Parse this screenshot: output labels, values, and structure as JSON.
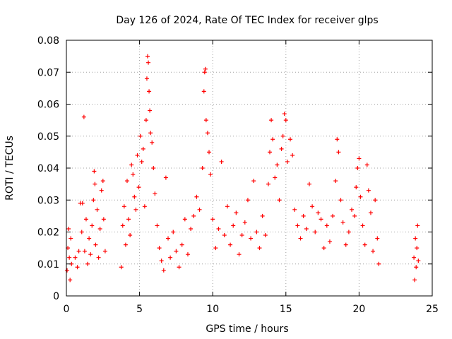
{
  "chart_data": {
    "type": "scatter",
    "title": "Day 126 of 2024, Rate Of TEC Index for receiver glps",
    "xlabel": "GPS time / hours",
    "ylabel": "ROTI / TECUs",
    "xlim": [
      0,
      25
    ],
    "ylim": [
      0,
      0.08
    ],
    "x_ticks": [
      0,
      5,
      10,
      15,
      20,
      25
    ],
    "x_tick_labels": [
      "0",
      "5",
      "10",
      "15",
      "20",
      "25"
    ],
    "y_ticks": [
      0,
      0.01,
      0.02,
      0.03,
      0.04,
      0.05,
      0.06,
      0.07,
      0.08
    ],
    "y_tick_labels": [
      "0",
      "0.01",
      "0.02",
      "0.03",
      "0.04",
      "0.05",
      "0.06",
      "0.07",
      "0.08"
    ],
    "grid": true,
    "marker": "+",
    "marker_color": "#ff0000",
    "grid_color": "#a0a0a0",
    "series": [
      {
        "name": "ROTI",
        "points": [
          [
            0.05,
            0.008
          ],
          [
            0.1,
            0.015
          ],
          [
            0.15,
            0.021
          ],
          [
            0.2,
            0.012
          ],
          [
            0.25,
            0.005
          ],
          [
            0.3,
            0.018
          ],
          [
            0.35,
            0.01
          ],
          [
            0.6,
            0.012
          ],
          [
            0.75,
            0.009
          ],
          [
            0.85,
            0.014
          ],
          [
            0.95,
            0.029
          ],
          [
            1.05,
            0.02
          ],
          [
            1.1,
            0.029
          ],
          [
            1.2,
            0.056
          ],
          [
            1.25,
            0.014
          ],
          [
            1.35,
            0.024
          ],
          [
            1.45,
            0.01
          ],
          [
            1.55,
            0.018
          ],
          [
            1.65,
            0.013
          ],
          [
            1.75,
            0.022
          ],
          [
            1.85,
            0.03
          ],
          [
            1.9,
            0.039
          ],
          [
            1.95,
            0.035
          ],
          [
            2.0,
            0.016
          ],
          [
            2.1,
            0.027
          ],
          [
            2.2,
            0.012
          ],
          [
            2.3,
            0.021
          ],
          [
            2.4,
            0.033
          ],
          [
            2.5,
            0.036
          ],
          [
            2.55,
            0.024
          ],
          [
            2.65,
            0.014
          ],
          [
            3.75,
            0.009
          ],
          [
            3.85,
            0.022
          ],
          [
            3.95,
            0.028
          ],
          [
            4.05,
            0.016
          ],
          [
            4.15,
            0.036
          ],
          [
            4.25,
            0.024
          ],
          [
            4.35,
            0.019
          ],
          [
            4.45,
            0.041
          ],
          [
            4.55,
            0.038
          ],
          [
            4.65,
            0.031
          ],
          [
            4.75,
            0.027
          ],
          [
            4.85,
            0.044
          ],
          [
            4.95,
            0.034
          ],
          [
            5.05,
            0.05
          ],
          [
            5.15,
            0.042
          ],
          [
            5.25,
            0.046
          ],
          [
            5.35,
            0.028
          ],
          [
            5.45,
            0.055
          ],
          [
            5.5,
            0.068
          ],
          [
            5.55,
            0.075
          ],
          [
            5.6,
            0.073
          ],
          [
            5.65,
            0.064
          ],
          [
            5.7,
            0.058
          ],
          [
            5.75,
            0.051
          ],
          [
            5.85,
            0.048
          ],
          [
            5.95,
            0.04
          ],
          [
            6.05,
            0.032
          ],
          [
            6.2,
            0.022
          ],
          [
            6.35,
            0.015
          ],
          [
            6.5,
            0.011
          ],
          [
            6.65,
            0.008
          ],
          [
            6.8,
            0.037
          ],
          [
            6.95,
            0.018
          ],
          [
            7.1,
            0.012
          ],
          [
            7.3,
            0.02
          ],
          [
            7.5,
            0.014
          ],
          [
            7.7,
            0.009
          ],
          [
            7.9,
            0.016
          ],
          [
            8.1,
            0.024
          ],
          [
            8.3,
            0.013
          ],
          [
            8.5,
            0.021
          ],
          [
            8.7,
            0.025
          ],
          [
            8.9,
            0.031
          ],
          [
            9.1,
            0.027
          ],
          [
            9.3,
            0.04
          ],
          [
            9.4,
            0.064
          ],
          [
            9.45,
            0.07
          ],
          [
            9.5,
            0.071
          ],
          [
            9.55,
            0.055
          ],
          [
            9.65,
            0.051
          ],
          [
            9.75,
            0.045
          ],
          [
            9.85,
            0.038
          ],
          [
            10.0,
            0.024
          ],
          [
            10.2,
            0.015
          ],
          [
            10.4,
            0.021
          ],
          [
            10.6,
            0.042
          ],
          [
            10.8,
            0.019
          ],
          [
            11.0,
            0.028
          ],
          [
            11.2,
            0.016
          ],
          [
            11.4,
            0.022
          ],
          [
            11.6,
            0.026
          ],
          [
            11.8,
            0.013
          ],
          [
            12.0,
            0.019
          ],
          [
            12.2,
            0.023
          ],
          [
            12.4,
            0.03
          ],
          [
            12.6,
            0.018
          ],
          [
            12.8,
            0.036
          ],
          [
            13.0,
            0.02
          ],
          [
            13.2,
            0.015
          ],
          [
            13.4,
            0.025
          ],
          [
            13.6,
            0.019
          ],
          [
            13.8,
            0.035
          ],
          [
            13.9,
            0.045
          ],
          [
            14.0,
            0.055
          ],
          [
            14.1,
            0.049
          ],
          [
            14.25,
            0.037
          ],
          [
            14.4,
            0.041
          ],
          [
            14.55,
            0.03
          ],
          [
            14.7,
            0.046
          ],
          [
            14.8,
            0.05
          ],
          [
            14.9,
            0.057
          ],
          [
            15.0,
            0.055
          ],
          [
            15.1,
            0.042
          ],
          [
            15.3,
            0.049
          ],
          [
            15.45,
            0.044
          ],
          [
            15.6,
            0.027
          ],
          [
            15.8,
            0.022
          ],
          [
            16.0,
            0.018
          ],
          [
            16.2,
            0.025
          ],
          [
            16.4,
            0.021
          ],
          [
            16.6,
            0.035
          ],
          [
            16.8,
            0.028
          ],
          [
            17.0,
            0.02
          ],
          [
            17.2,
            0.026
          ],
          [
            17.4,
            0.024
          ],
          [
            17.6,
            0.015
          ],
          [
            17.8,
            0.022
          ],
          [
            18.0,
            0.017
          ],
          [
            18.2,
            0.025
          ],
          [
            18.4,
            0.036
          ],
          [
            18.5,
            0.049
          ],
          [
            18.6,
            0.045
          ],
          [
            18.75,
            0.03
          ],
          [
            18.9,
            0.023
          ],
          [
            19.1,
            0.016
          ],
          [
            19.3,
            0.02
          ],
          [
            19.5,
            0.027
          ],
          [
            19.7,
            0.025
          ],
          [
            19.8,
            0.034
          ],
          [
            19.9,
            0.04
          ],
          [
            20.0,
            0.043
          ],
          [
            20.1,
            0.031
          ],
          [
            20.25,
            0.022
          ],
          [
            20.4,
            0.016
          ],
          [
            20.55,
            0.041
          ],
          [
            20.65,
            0.033
          ],
          [
            20.8,
            0.026
          ],
          [
            20.95,
            0.014
          ],
          [
            21.1,
            0.03
          ],
          [
            21.25,
            0.018
          ],
          [
            21.35,
            0.01
          ],
          [
            23.75,
            0.012
          ],
          [
            23.8,
            0.005
          ],
          [
            23.85,
            0.018
          ],
          [
            23.9,
            0.009
          ],
          [
            23.95,
            0.015
          ],
          [
            24.0,
            0.022
          ],
          [
            24.05,
            0.011
          ]
        ]
      }
    ]
  }
}
